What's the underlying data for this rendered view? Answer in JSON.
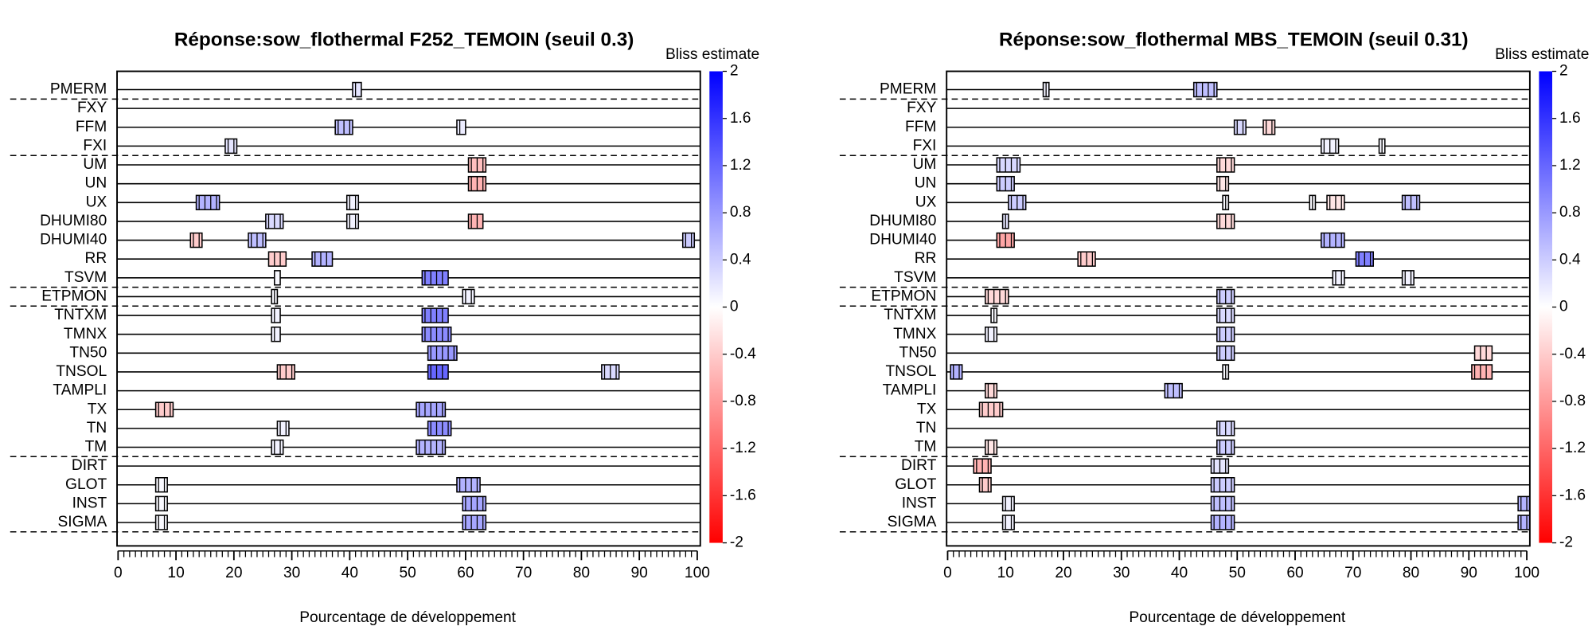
{
  "chart_data": [
    {
      "type": "timeline",
      "title": "Réponse:sow_flothermal  F252_TEMOIN (seuil 0.3)",
      "colorbar_title": "Bliss estimate",
      "xlabel": "Pourcentage de développement",
      "xlim": [
        0,
        100
      ],
      "xticks": [
        0,
        10,
        20,
        30,
        40,
        50,
        60,
        70,
        80,
        90,
        100
      ],
      "clim": [
        -2,
        2
      ],
      "cticks": [
        2,
        1.6,
        1.2,
        0.8,
        0.4,
        0,
        -0.4,
        -0.8,
        -1.2,
        -1.6,
        -2
      ],
      "colors": [
        "#ff0000",
        "#ffffff",
        "#0000ff"
      ],
      "group_breaks": [
        0,
        3,
        10,
        11,
        19,
        23
      ],
      "rows": [
        {
          "label": "PMERM",
          "boxes": [
            {
              "start": 40.5,
              "end": 42,
              "estimate": 0.2
            }
          ]
        },
        {
          "label": "FXY",
          "boxes": []
        },
        {
          "label": "FFM",
          "boxes": [
            {
              "start": 37.5,
              "end": 40.5,
              "estimate": 0.5
            },
            {
              "start": 58.5,
              "end": 60,
              "estimate": 0.15
            }
          ]
        },
        {
          "label": "FXI",
          "boxes": [
            {
              "start": 18.5,
              "end": 20.5,
              "estimate": 0.2
            }
          ]
        },
        {
          "label": "UM",
          "boxes": [
            {
              "start": 60.5,
              "end": 63.5,
              "estimate": -0.5
            }
          ]
        },
        {
          "label": "UN",
          "boxes": [
            {
              "start": 60.5,
              "end": 63.5,
              "estimate": -0.6
            }
          ]
        },
        {
          "label": "UX",
          "boxes": [
            {
              "start": 13.5,
              "end": 17.5,
              "estimate": 0.6
            },
            {
              "start": 39.5,
              "end": 41.5,
              "estimate": 0.1
            }
          ]
        },
        {
          "label": "DHUMI80",
          "boxes": [
            {
              "start": 25.5,
              "end": 28.5,
              "estimate": 0.3
            },
            {
              "start": 39.5,
              "end": 41.5,
              "estimate": 0.1
            },
            {
              "start": 60.5,
              "end": 63,
              "estimate": -0.6
            }
          ]
        },
        {
          "label": "DHUMI40",
          "boxes": [
            {
              "start": 12.5,
              "end": 14.5,
              "estimate": -0.4
            },
            {
              "start": 22.5,
              "end": 25.5,
              "estimate": 0.5
            },
            {
              "start": 97.5,
              "end": 99.5,
              "estimate": 0.4
            }
          ]
        },
        {
          "label": "RR",
          "boxes": [
            {
              "start": 26,
              "end": 29,
              "estimate": -0.4
            },
            {
              "start": 33.5,
              "end": 37,
              "estimate": 0.6
            }
          ]
        },
        {
          "label": "TSVM",
          "boxes": [
            {
              "start": 27,
              "end": 28,
              "estimate": 0.05
            },
            {
              "start": 52.5,
              "end": 57,
              "estimate": 1.0
            }
          ]
        },
        {
          "label": "ETPMON",
          "boxes": [
            {
              "start": 26.5,
              "end": 27.5,
              "estimate": 0.05
            },
            {
              "start": 59.5,
              "end": 61.5,
              "estimate": 0.1
            }
          ]
        },
        {
          "label": "TNTXM",
          "boxes": [
            {
              "start": 26.5,
              "end": 28,
              "estimate": 0.1
            },
            {
              "start": 52.5,
              "end": 57,
              "estimate": 1.0
            }
          ]
        },
        {
          "label": "TMNX",
          "boxes": [
            {
              "start": 26.5,
              "end": 28,
              "estimate": 0.1
            },
            {
              "start": 52.5,
              "end": 57.5,
              "estimate": 0.9
            }
          ]
        },
        {
          "label": "TN50",
          "boxes": [
            {
              "start": 53.5,
              "end": 58.5,
              "estimate": 0.8
            }
          ]
        },
        {
          "label": "TNSOL",
          "boxes": [
            {
              "start": 27.5,
              "end": 30.5,
              "estimate": -0.4
            },
            {
              "start": 53.5,
              "end": 57,
              "estimate": 1.2
            },
            {
              "start": 83.5,
              "end": 86.5,
              "estimate": 0.3
            }
          ]
        },
        {
          "label": "TAMPLI",
          "boxes": []
        },
        {
          "label": "TX",
          "boxes": [
            {
              "start": 6.5,
              "end": 9.5,
              "estimate": -0.4
            },
            {
              "start": 51.5,
              "end": 56.5,
              "estimate": 0.7
            }
          ]
        },
        {
          "label": "TN",
          "boxes": [
            {
              "start": 27.5,
              "end": 29.5,
              "estimate": 0.1
            },
            {
              "start": 53.5,
              "end": 57.5,
              "estimate": 0.9
            }
          ]
        },
        {
          "label": "TM",
          "boxes": [
            {
              "start": 26.5,
              "end": 28.5,
              "estimate": 0.1
            },
            {
              "start": 51.5,
              "end": 56.5,
              "estimate": 0.6
            }
          ]
        },
        {
          "label": "DIRT",
          "boxes": []
        },
        {
          "label": "GLOT",
          "boxes": [
            {
              "start": 6.5,
              "end": 8.5,
              "estimate": 0.05
            },
            {
              "start": 58.5,
              "end": 62.5,
              "estimate": 0.6
            }
          ]
        },
        {
          "label": "INST",
          "boxes": [
            {
              "start": 6.5,
              "end": 8.5,
              "estimate": 0.05
            },
            {
              "start": 59.5,
              "end": 63.5,
              "estimate": 0.7
            }
          ]
        },
        {
          "label": "SIGMA",
          "boxes": [
            {
              "start": 6.5,
              "end": 8.5,
              "estimate": 0.05
            },
            {
              "start": 59.5,
              "end": 63.5,
              "estimate": 0.7
            }
          ]
        }
      ]
    },
    {
      "type": "timeline",
      "title": "Réponse:sow_flothermal  MBS_TEMOIN (seuil 0.31)",
      "colorbar_title": "Bliss estimate",
      "xlabel": "Pourcentage de développement",
      "xlim": [
        0,
        100
      ],
      "xticks": [
        0,
        10,
        20,
        30,
        40,
        50,
        60,
        70,
        80,
        90,
        100
      ],
      "clim": [
        -2,
        2
      ],
      "cticks": [
        2,
        1.6,
        1.2,
        0.8,
        0.4,
        0,
        -0.4,
        -0.8,
        -1.2,
        -1.6,
        -2
      ],
      "colors": [
        "#ff0000",
        "#ffffff",
        "#0000ff"
      ],
      "group_breaks": [
        0,
        3,
        10,
        11,
        19,
        23
      ],
      "rows": [
        {
          "label": "PMERM",
          "boxes": [
            {
              "start": 16.5,
              "end": 17.5,
              "estimate": 0.1
            },
            {
              "start": 42.5,
              "end": 46.5,
              "estimate": 0.5
            }
          ]
        },
        {
          "label": "FXY",
          "boxes": []
        },
        {
          "label": "FFM",
          "boxes": [
            {
              "start": 49.5,
              "end": 51.5,
              "estimate": 0.3
            },
            {
              "start": 54.5,
              "end": 56.5,
              "estimate": -0.3
            }
          ]
        },
        {
          "label": "FXI",
          "boxes": [
            {
              "start": 64.5,
              "end": 67.5,
              "estimate": 0.1
            },
            {
              "start": 74.5,
              "end": 75.5,
              "estimate": 0.05
            }
          ]
        },
        {
          "label": "UM",
          "boxes": [
            {
              "start": 8.5,
              "end": 12.5,
              "estimate": 0.3
            },
            {
              "start": 46.5,
              "end": 49.5,
              "estimate": -0.3
            }
          ]
        },
        {
          "label": "UN",
          "boxes": [
            {
              "start": 8.5,
              "end": 11.5,
              "estimate": 0.4
            },
            {
              "start": 46.5,
              "end": 48.5,
              "estimate": -0.2
            }
          ]
        },
        {
          "label": "UX",
          "boxes": [
            {
              "start": 10.5,
              "end": 13.5,
              "estimate": 0.4
            },
            {
              "start": 47.5,
              "end": 48.5,
              "estimate": 0.05
            },
            {
              "start": 62.5,
              "end": 63.5,
              "estimate": 0.05
            },
            {
              "start": 65.5,
              "end": 68.5,
              "estimate": -0.2
            },
            {
              "start": 78.5,
              "end": 81.5,
              "estimate": 0.5
            }
          ]
        },
        {
          "label": "DHUMI80",
          "boxes": [
            {
              "start": 9.5,
              "end": 10.5,
              "estimate": 0.2
            },
            {
              "start": 46.5,
              "end": 49.5,
              "estimate": -0.3
            }
          ]
        },
        {
          "label": "DHUMI40",
          "boxes": [
            {
              "start": 8.5,
              "end": 11.5,
              "estimate": -0.7
            },
            {
              "start": 64.5,
              "end": 68.5,
              "estimate": 0.6
            }
          ]
        },
        {
          "label": "RR",
          "boxes": [
            {
              "start": 22.5,
              "end": 25.5,
              "estimate": -0.4
            },
            {
              "start": 70.5,
              "end": 73.5,
              "estimate": 1.0
            }
          ]
        },
        {
          "label": "TSVM",
          "boxes": [
            {
              "start": 66.5,
              "end": 68.5,
              "estimate": 0.1
            },
            {
              "start": 78.5,
              "end": 80.5,
              "estimate": 0.1
            }
          ]
        },
        {
          "label": "ETPMON",
          "boxes": [
            {
              "start": 6.5,
              "end": 10.5,
              "estimate": -0.3
            },
            {
              "start": 46.5,
              "end": 49.5,
              "estimate": 0.4
            }
          ]
        },
        {
          "label": "TNTXM",
          "boxes": [
            {
              "start": 7.5,
              "end": 8.5,
              "estimate": 0.05
            },
            {
              "start": 46.5,
              "end": 49.5,
              "estimate": 0.3
            }
          ]
        },
        {
          "label": "TMNX",
          "boxes": [
            {
              "start": 6.5,
              "end": 8.5,
              "estimate": 0.1
            },
            {
              "start": 46.5,
              "end": 49.5,
              "estimate": 0.4
            }
          ]
        },
        {
          "label": "TN50",
          "boxes": [
            {
              "start": 46.5,
              "end": 49.5,
              "estimate": 0.4
            },
            {
              "start": 91,
              "end": 94,
              "estimate": -0.3
            }
          ]
        },
        {
          "label": "TNSOL",
          "boxes": [
            {
              "start": 0.5,
              "end": 2.5,
              "estimate": 0.6
            },
            {
              "start": 47.5,
              "end": 48.5,
              "estimate": 0.05
            },
            {
              "start": 90.5,
              "end": 94,
              "estimate": -0.6
            }
          ]
        },
        {
          "label": "TAMPLI",
          "boxes": [
            {
              "start": 6.5,
              "end": 8.5,
              "estimate": -0.3
            },
            {
              "start": 37.5,
              "end": 40.5,
              "estimate": 0.5
            }
          ]
        },
        {
          "label": "TX",
          "boxes": [
            {
              "start": 5.5,
              "end": 9.5,
              "estimate": -0.4
            }
          ]
        },
        {
          "label": "TN",
          "boxes": [
            {
              "start": 46.5,
              "end": 49.5,
              "estimate": 0.3
            }
          ]
        },
        {
          "label": "TM",
          "boxes": [
            {
              "start": 6.5,
              "end": 8.5,
              "estimate": -0.2
            },
            {
              "start": 46.5,
              "end": 49.5,
              "estimate": 0.4
            }
          ]
        },
        {
          "label": "DIRT",
          "boxes": [
            {
              "start": 4.5,
              "end": 7.5,
              "estimate": -0.6
            },
            {
              "start": 45.5,
              "end": 48.5,
              "estimate": 0.2
            }
          ]
        },
        {
          "label": "GLOT",
          "boxes": [
            {
              "start": 5.5,
              "end": 7.5,
              "estimate": -0.4
            },
            {
              "start": 45.5,
              "end": 49.5,
              "estimate": 0.4
            }
          ]
        },
        {
          "label": "INST",
          "boxes": [
            {
              "start": 9.5,
              "end": 11.5,
              "estimate": 0.1
            },
            {
              "start": 45.5,
              "end": 49.5,
              "estimate": 0.5
            },
            {
              "start": 98.5,
              "end": 100.5,
              "estimate": 0.6
            }
          ]
        },
        {
          "label": "SIGMA",
          "boxes": [
            {
              "start": 9.5,
              "end": 11.5,
              "estimate": 0.1
            },
            {
              "start": 45.5,
              "end": 49.5,
              "estimate": 0.6
            },
            {
              "start": 98.5,
              "end": 100.5,
              "estimate": 0.6
            }
          ]
        }
      ]
    }
  ]
}
